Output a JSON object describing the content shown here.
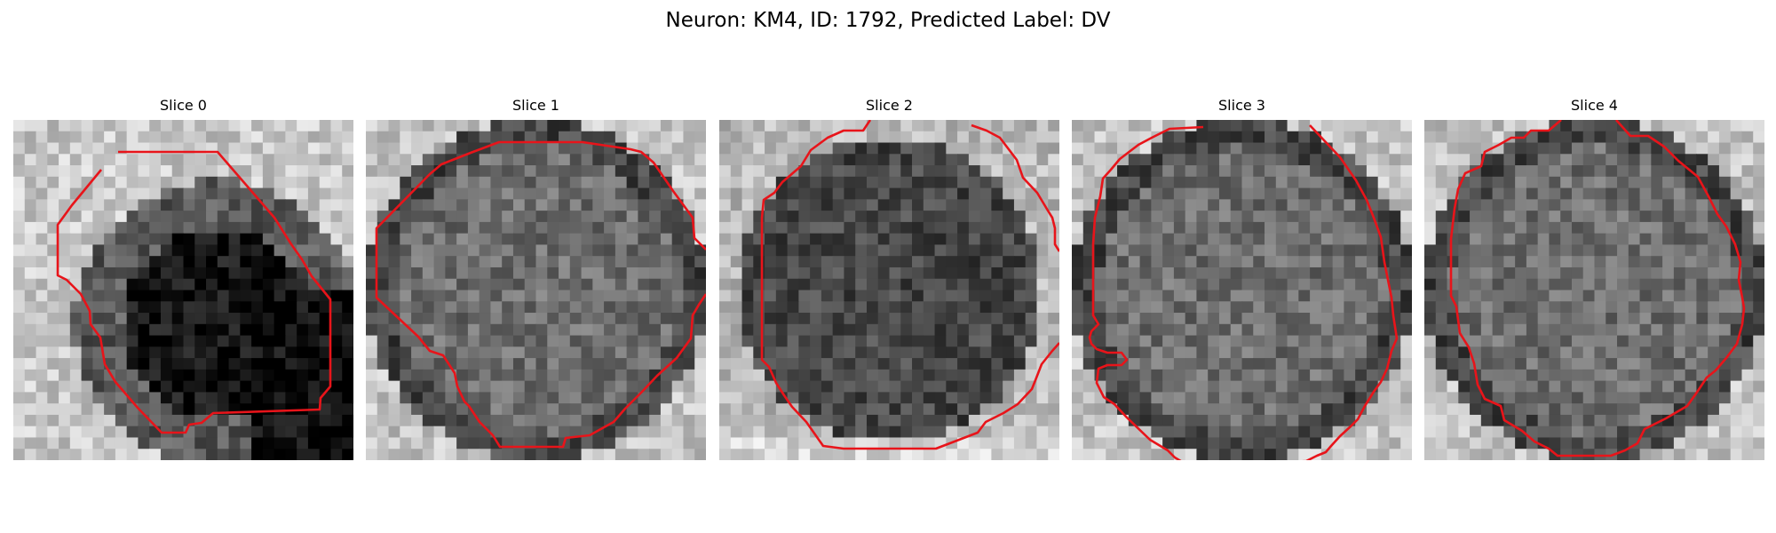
{
  "figure": {
    "title": "Neuron: KM4, ID: 1792, Predicted Label: DV"
  },
  "panels": [
    {
      "title": "Slice 0",
      "shade": "dark-blob"
    },
    {
      "title": "Slice 1",
      "shade": "mid-gray"
    },
    {
      "title": "Slice 2",
      "shade": "dark-gray"
    },
    {
      "title": "Slice 3",
      "shade": "mid-gray"
    },
    {
      "title": "Slice 4",
      "shade": "mid-gray"
    }
  ],
  "colors": {
    "contour": "#e8141a",
    "background": "#ffffff"
  }
}
